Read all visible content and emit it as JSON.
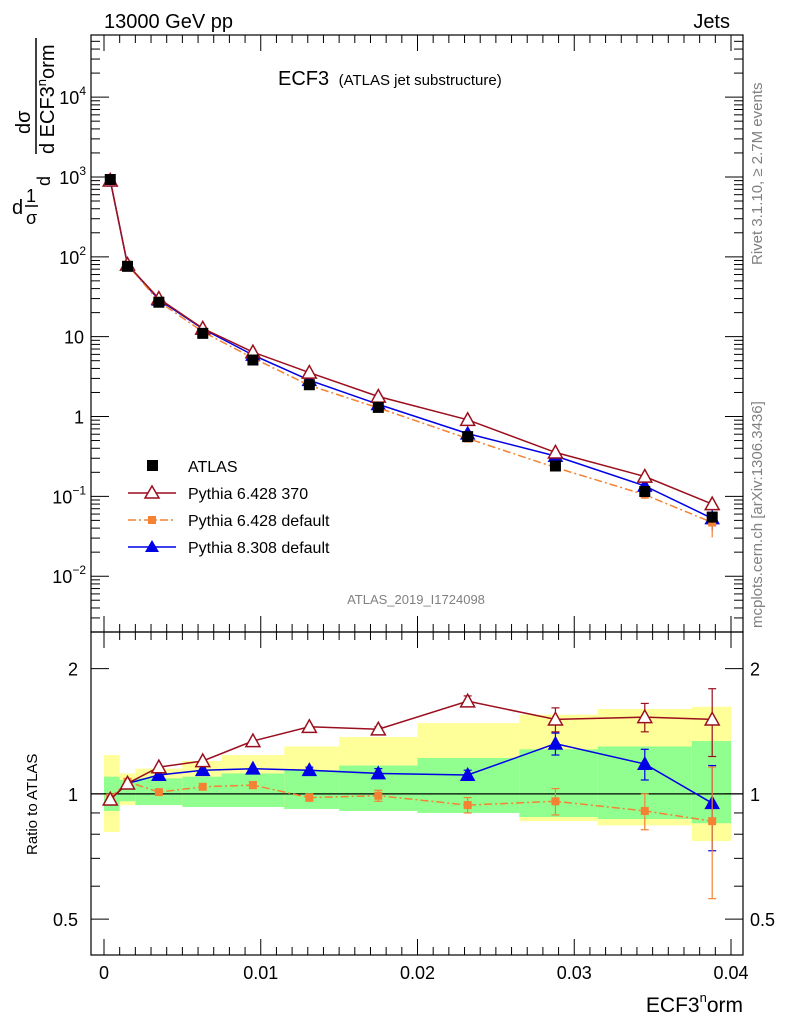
{
  "header": {
    "left": "13000 GeV pp",
    "right": "Jets",
    "title": "ECF3",
    "subtitle": "(ATLAS jet substructure)",
    "watermark": "ATLAS_2019_I1724098",
    "side_top": "Rivet 3.1.10, ≥ 2.7M events",
    "side_bottom": "mcplots.cern.ch [arXiv:1306.3436]"
  },
  "ylabel_main": {
    "frac_num": "1",
    "frac_den": "σ",
    "d1": "d",
    "d2": "d",
    "top_num": "dσ",
    "den_prefix": "d ECF3",
    "den_sup": "n",
    "den_suffix": "orm"
  },
  "ylabel_ratio": "Ratio to ATLAS",
  "xlabel": {
    "main": "ECF3",
    "sup": "n",
    "suffix": "orm"
  },
  "colors": {
    "atlas": "#000000",
    "py6_370": "#9b0f1e",
    "py6_default": "#f58233",
    "py8_default": "#0000e6",
    "band_yellow": "#ffff99",
    "band_green": "#90ff90"
  },
  "legend": [
    {
      "label": "ATLAS",
      "marker": "square-filled"
    },
    {
      "label": "Pythia 6.428 370",
      "marker": "triangle-open"
    },
    {
      "label": "Pythia 6.428 default",
      "marker": "square-filled-small"
    },
    {
      "label": "Pythia 8.308 default",
      "marker": "triangle-filled"
    }
  ],
  "chart_data": [
    {
      "type": "line",
      "log_y": true,
      "xlim": [
        0,
        0.04
      ],
      "ylim": [
        0.002,
        60000
      ],
      "x_ticks": [
        "0",
        "0.01",
        "0.02",
        "0.03",
        "0.04"
      ],
      "y_ticks": [
        {
          "base": "10",
          "exp": "−2"
        },
        {
          "base": "10",
          "exp": "−1"
        },
        {
          "base": "1",
          "exp": ""
        },
        {
          "base": "10",
          "exp": ""
        },
        {
          "base": "10",
          "exp": "2"
        },
        {
          "base": "10",
          "exp": "3"
        },
        {
          "base": "10",
          "exp": "4"
        }
      ],
      "bins": [
        [
          0,
          0.001
        ],
        [
          0.001,
          0.002
        ],
        [
          0.002,
          0.005
        ],
        [
          0.005,
          0.0075
        ],
        [
          0.0075,
          0.0115
        ],
        [
          0.0115,
          0.015
        ],
        [
          0.015,
          0.02
        ],
        [
          0.02,
          0.0265
        ],
        [
          0.0265,
          0.0315
        ],
        [
          0.0315,
          0.0375
        ],
        [
          0.0375,
          0.04
        ]
      ],
      "x": [
        0.0004,
        0.0015,
        0.0035,
        0.0063,
        0.0095,
        0.0131,
        0.0175,
        0.0232,
        0.0288,
        0.0345,
        0.0388
      ],
      "series": [
        {
          "name": "ATLAS",
          "values": [
            930,
            76,
            27,
            11,
            5.1,
            2.5,
            1.3,
            0.56,
            0.24,
            0.115,
            0.055
          ],
          "err_rel": [
            0.02,
            0.03,
            0.03,
            0.03,
            0.03,
            0.04,
            0.05,
            0.06,
            0.08,
            0.1,
            0.15
          ]
        },
        {
          "name": "Pythia 6.428 370",
          "values": [
            905,
            80,
            30,
            12.7,
            6.4,
            3.55,
            1.78,
            0.91,
            0.355,
            0.177,
            0.08
          ],
          "err_rel": [
            0,
            0,
            0,
            0,
            0,
            0,
            0,
            0.02,
            0.05,
            0.06,
            0.12
          ]
        },
        {
          "name": "Pythia 6.428 default",
          "values": [
            930,
            80,
            27.5,
            11.5,
            5.4,
            2.45,
            1.28,
            0.53,
            0.23,
            0.105,
            0.047
          ],
          "err_rel": [
            0,
            0,
            0,
            0,
            0.02,
            0.02,
            0.03,
            0.05,
            0.08,
            0.12,
            0.35
          ]
        },
        {
          "name": "Pythia 8.308 default",
          "values": [
            900,
            80,
            29,
            12.5,
            5.9,
            2.85,
            1.42,
            0.61,
            0.32,
            0.135,
            0.053
          ],
          "err_rel": [
            0,
            0,
            0,
            0,
            0.02,
            0.02,
            0.03,
            0.04,
            0.06,
            0.08,
            0.3
          ]
        }
      ]
    },
    {
      "type": "line",
      "log_y": true,
      "xlim": [
        0,
        0.04
      ],
      "ylim": [
        0.41,
        2.45
      ],
      "y_ticks": [
        "0.5",
        "1",
        "2"
      ],
      "ylabel": "Ratio to ATLAS",
      "band_green": [
        [
          0.91,
          1.1
        ],
        [
          0.96,
          1.08
        ],
        [
          0.94,
          1.09
        ],
        [
          0.93,
          1.1
        ],
        [
          0.93,
          1.12
        ],
        [
          0.92,
          1.14
        ],
        [
          0.91,
          1.17
        ],
        [
          0.9,
          1.22
        ],
        [
          0.88,
          1.28
        ],
        [
          0.87,
          1.3
        ],
        [
          0.85,
          1.34
        ]
      ],
      "band_yellow": [
        [
          0.81,
          1.24
        ],
        [
          0.94,
          1.12
        ],
        [
          0.94,
          1.15
        ],
        [
          0.93,
          1.2
        ],
        [
          0.93,
          1.24
        ],
        [
          0.92,
          1.3
        ],
        [
          0.91,
          1.37
        ],
        [
          0.9,
          1.48
        ],
        [
          0.86,
          1.55
        ],
        [
          0.84,
          1.6
        ],
        [
          0.77,
          1.62
        ]
      ],
      "series": [
        {
          "name": "Pythia 6.428 370",
          "values": [
            0.97,
            1.06,
            1.16,
            1.2,
            1.34,
            1.45,
            1.43,
            1.67,
            1.51,
            1.53,
            1.51
          ],
          "err": [
            0,
            0,
            0,
            0,
            0,
            0,
            0.02,
            0.05,
            0.1,
            0.12,
            0.28
          ]
        },
        {
          "name": "Pythia 6.428 default",
          "values": [
            0.98,
            1.07,
            1.01,
            1.04,
            1.05,
            0.98,
            0.99,
            0.94,
            0.96,
            0.91,
            0.86
          ],
          "err": [
            0,
            0,
            0,
            0,
            0.02,
            0.02,
            0.03,
            0.04,
            0.07,
            0.09,
            0.3
          ]
        },
        {
          "name": "Pythia 8.308 default",
          "values": [
            0.97,
            1.06,
            1.11,
            1.14,
            1.15,
            1.14,
            1.12,
            1.11,
            1.32,
            1.18,
            0.95
          ],
          "err": [
            0,
            0,
            0,
            0,
            0,
            0.02,
            0.03,
            0.03,
            0.08,
            0.1,
            0.22
          ]
        }
      ]
    }
  ]
}
